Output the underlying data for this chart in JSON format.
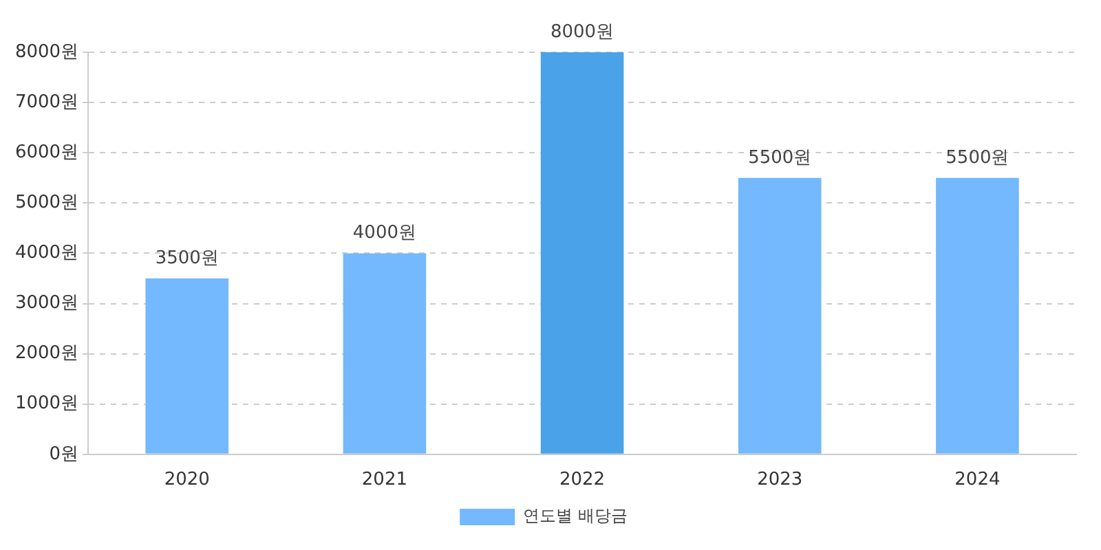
{
  "chart_data": {
    "type": "bar",
    "categories": [
      "2020",
      "2021",
      "2022",
      "2023",
      "2024"
    ],
    "series": [
      {
        "name": "연도별 배당금",
        "colors": [
          "#74b8fd",
          "#74b8fd",
          "#4aa2e8",
          "#74b8fd",
          "#74b8fd"
        ],
        "values": [
          3500,
          4000,
          8000,
          5500,
          5500
        ],
        "value_labels": [
          "3500원",
          "4000원",
          "8000원",
          "5500원",
          "5500원"
        ]
      }
    ],
    "ylim": [
      0,
      8000
    ],
    "yticks": [
      {
        "value": 0,
        "label": "0원"
      },
      {
        "value": 1000,
        "label": "1000원"
      },
      {
        "value": 2000,
        "label": "2000원"
      },
      {
        "value": 3000,
        "label": "3000원"
      },
      {
        "value": 4000,
        "label": "4000원"
      },
      {
        "value": 5000,
        "label": "5000원"
      },
      {
        "value": 6000,
        "label": "6000원"
      },
      {
        "value": 7000,
        "label": "7000원"
      },
      {
        "value": 8000,
        "label": "8000원"
      }
    ],
    "grid": "y",
    "legend": "bottom"
  }
}
